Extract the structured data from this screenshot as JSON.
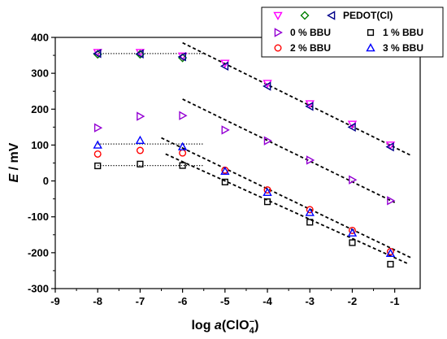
{
  "chart_data": {
    "type": "scatter",
    "title": "",
    "xlabel": {
      "prefix": "log ",
      "italic": "a",
      "paren_open": "(ClO",
      "subscript": "4",
      "superscript": "−",
      "paren_close": ")"
    },
    "ylabel": {
      "italic": "E",
      "rest": " / mV"
    },
    "xlim": [
      -9,
      -0.4
    ],
    "ylim": [
      -300,
      400
    ],
    "xticks": [
      -9,
      -8,
      -7,
      -6,
      -5,
      -4,
      -3,
      -2,
      -1
    ],
    "yticks": [
      -300,
      -200,
      -100,
      0,
      100,
      200,
      300,
      400
    ],
    "legend": {
      "placement": "top-right",
      "shared_label": "PEDOT(Cl)",
      "entries": [
        {
          "marker": "triangle-down",
          "color": "#ff00ff",
          "label": ""
        },
        {
          "marker": "diamond",
          "color": "#008000",
          "label": ""
        },
        {
          "marker": "triangle-left",
          "color": "#00008b",
          "label": "PEDOT(Cl)"
        },
        {
          "marker": "triangle-right",
          "color": "#9400d3",
          "label": "0 % BBU"
        },
        {
          "marker": "square",
          "color": "#000000",
          "label": "1 % BBU"
        },
        {
          "marker": "circle",
          "color": "#ff0000",
          "label": "2 % BBU"
        },
        {
          "marker": "triangle-up",
          "color": "#0000ff",
          "label": "3 % BBU"
        }
      ]
    },
    "series": [
      {
        "marker": "triangle-down",
        "color": "#ff00ff",
        "x": [
          -8,
          -7,
          -6,
          -5,
          -4,
          -3,
          -2,
          -1.1
        ],
        "y": [
          358,
          358,
          348,
          328,
          272,
          215,
          158,
          100
        ]
      },
      {
        "marker": "diamond",
        "color": "#008000",
        "x": [
          -8,
          -7,
          -6
        ],
        "y": [
          353,
          353,
          343
        ]
      },
      {
        "marker": "triangle-left",
        "color": "#00008b",
        "x": [
          -8,
          -7,
          -6,
          -5,
          -4,
          -3,
          -2,
          -1.1
        ],
        "y": [
          355,
          354,
          346,
          320,
          264,
          208,
          150,
          95
        ]
      },
      {
        "marker": "triangle-right",
        "color": "#9400d3",
        "x": [
          -8,
          -7,
          -6,
          -5,
          -4,
          -3,
          -2,
          -1.1
        ],
        "y": [
          148,
          180,
          182,
          142,
          112,
          58,
          3,
          -55
        ]
      },
      {
        "marker": "square",
        "color": "#000000",
        "x": [
          -8,
          -7,
          -6,
          -5,
          -4,
          -3,
          -2,
          -1.1
        ],
        "y": [
          42,
          47,
          43,
          -3,
          -58,
          -115,
          -172,
          -232
        ]
      },
      {
        "marker": "circle",
        "color": "#ff0000",
        "x": [
          -8,
          -7,
          -6,
          -5,
          -4,
          -3,
          -2,
          -1.1
        ],
        "y": [
          75,
          85,
          78,
          30,
          -25,
          -80,
          -138,
          -197
        ]
      },
      {
        "marker": "triangle-up",
        "color": "#0000ff",
        "x": [
          -8,
          -7,
          -6,
          -5,
          -4,
          -3,
          -2,
          -1.1
        ],
        "y": [
          100,
          113,
          95,
          27,
          -32,
          -88,
          -145,
          -202
        ]
      }
    ],
    "fit_lines": [
      {
        "style": "dashed",
        "x": [
          -6,
          -0.6
        ],
        "y": [
          385,
          70
        ]
      },
      {
        "style": "dashed",
        "x": [
          -6,
          -1.0
        ],
        "y": [
          228,
          -60
        ]
      },
      {
        "style": "dashed",
        "x": [
          -6.5,
          -0.6
        ],
        "y": [
          120,
          -215
        ]
      },
      {
        "style": "dashed",
        "x": [
          -6.4,
          -0.7
        ],
        "y": [
          75,
          -230
        ]
      },
      {
        "style": "dotted",
        "x": [
          -8,
          -5.5
        ],
        "y": [
          355,
          355
        ]
      },
      {
        "style": "dotted",
        "x": [
          -8,
          -5.5
        ],
        "y": [
          103,
          103
        ]
      },
      {
        "style": "dotted",
        "x": [
          -8,
          -5.5
        ],
        "y": [
          43,
          43
        ]
      }
    ]
  }
}
